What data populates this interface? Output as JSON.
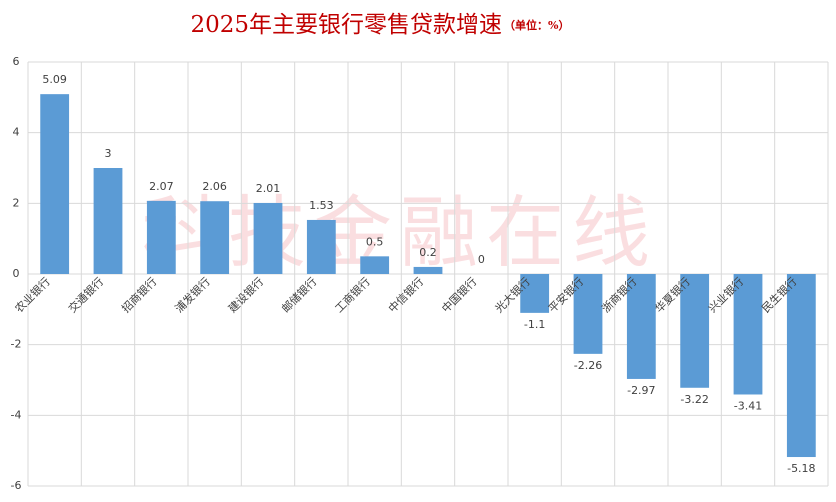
{
  "chart_data": {
    "type": "bar",
    "title": "2025年主要银行零售贷款增速",
    "subtitle": "（单位：%）",
    "watermark": "科技金融在线",
    "categories": [
      "农业银行",
      "交通银行",
      "招商银行",
      "浦发银行",
      "建设银行",
      "邮储银行",
      "工商银行",
      "中信银行",
      "中国银行",
      "光大银行",
      "平安银行",
      "浙商银行",
      "华夏银行",
      "兴业银行",
      "民生银行"
    ],
    "values": [
      5.09,
      3,
      2.07,
      2.06,
      2.01,
      1.53,
      0.5,
      0.2,
      0,
      -1.1,
      -2.26,
      -2.97,
      -3.22,
      -3.41,
      -5.18
    ],
    "color": "#5b9bd5",
    "ylim": [
      -6,
      6
    ],
    "yticks": [
      -6,
      -4,
      -2,
      0,
      2,
      4,
      6
    ],
    "grid": true
  }
}
